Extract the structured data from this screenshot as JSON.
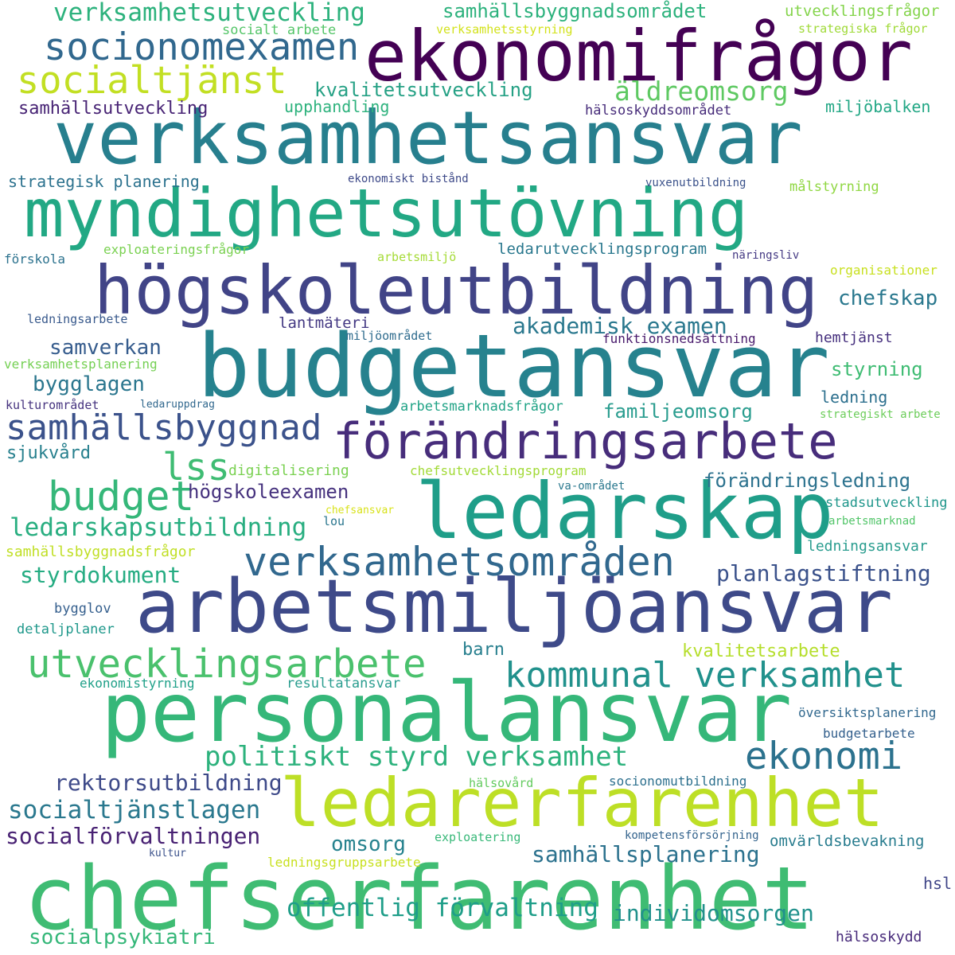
{
  "words": [
    {
      "text": "chefserfarenhet",
      "color": "#3fbc73"
    },
    {
      "text": "personalansvar",
      "color": "#35b779"
    },
    {
      "text": "arbetsmiljöansvar",
      "color": "#3e4a89"
    },
    {
      "text": "budgetansvar",
      "color": "#26828e"
    },
    {
      "text": "ledarerfarenhet",
      "color": "#bddf26"
    },
    {
      "text": "ledarskap",
      "color": "#1f9e89"
    },
    {
      "text": "verksamhetsansvar",
      "color": "#277f8e"
    },
    {
      "text": "myndighetsutövning",
      "color": "#22a884"
    },
    {
      "text": "högskoleutbildning",
      "color": "#414487"
    },
    {
      "text": "förändringsarbete",
      "color": "#472d7b"
    },
    {
      "text": "ekonomifrågor",
      "color": "#440154"
    },
    {
      "text": "verksamhetsområden",
      "color": "#31688e"
    },
    {
      "text": "socionomexamen",
      "color": "#31688e"
    },
    {
      "text": "utvecklingsarbete",
      "color": "#4ac16d"
    },
    {
      "text": "kommunal verksamhet",
      "color": "#21918c"
    },
    {
      "text": "samhällsbyggnad",
      "color": "#3b528b"
    },
    {
      "text": "budget",
      "color": "#35b779"
    },
    {
      "text": "socialtjänst",
      "color": "#c2df23"
    },
    {
      "text": "ekonomi",
      "color": "#2c728e"
    },
    {
      "text": "lss",
      "color": "#3fbc73"
    },
    {
      "text": "politiskt styrd verksamhet",
      "color": "#2db27d"
    },
    {
      "text": "verksamhetsutveckling",
      "color": "#2db27d"
    },
    {
      "text": "ledarskapsutbildning",
      "color": "#28ae80"
    },
    {
      "text": "socialtjänstlagen",
      "color": "#2a788e"
    },
    {
      "text": "socialförvaltningen",
      "color": "#482173"
    },
    {
      "text": "samhällsplanering",
      "color": "#2c728e"
    },
    {
      "text": "äldreomsorg",
      "color": "#5ec962"
    },
    {
      "text": "offentlig förvaltning",
      "color": "#1f9e89"
    },
    {
      "text": "individomsorgen",
      "color": "#21918c"
    },
    {
      "text": "samhällsbyggnadsområdet",
      "color": "#2db27d"
    },
    {
      "text": "akademisk examen",
      "color": "#2a788e"
    },
    {
      "text": "styrdokument",
      "color": "#25ac82"
    },
    {
      "text": "planlagstiftning",
      "color": "#3b528b"
    },
    {
      "text": "förändringsledning",
      "color": "#2c728e"
    },
    {
      "text": "rektorsutbildning",
      "color": "#3e4a89"
    },
    {
      "text": "socialpsykiatri",
      "color": "#35b779"
    },
    {
      "text": "familjeomsorg",
      "color": "#2a9d8f"
    },
    {
      "text": "samverkan",
      "color": "#365c8d"
    },
    {
      "text": "bygglagen",
      "color": "#2a768e"
    },
    {
      "text": "chefskap",
      "color": "#2a788e"
    },
    {
      "text": "kvalitetsarbete",
      "color": "#b5de2b"
    },
    {
      "text": "högskoleexamen",
      "color": "#46327e"
    },
    {
      "text": "omsorg",
      "color": "#26828e"
    },
    {
      "text": "styrning",
      "color": "#3fbc73"
    },
    {
      "text": "kvalitetsutveckling",
      "color": "#26a185"
    },
    {
      "text": "samhällsutveckling",
      "color": "#482475"
    },
    {
      "text": "upphandling",
      "color": "#2db27d"
    },
    {
      "text": "strategisk planering",
      "color": "#2c728e"
    },
    {
      "text": "exploateringsfrågor",
      "color": "#7ad151"
    },
    {
      "text": "ledarutvecklingsprogram",
      "color": "#2a788e"
    },
    {
      "text": "sjukvård",
      "color": "#27808e"
    },
    {
      "text": "lantmäteri",
      "color": "#443983"
    },
    {
      "text": "utvecklingsfrågor",
      "color": "#84d44b"
    },
    {
      "text": "socialt arbete",
      "color": "#54c568"
    },
    {
      "text": "verksamhetsstyrning",
      "color": "#d2e21b"
    },
    {
      "text": "strategiska frågor",
      "color": "#a0da39"
    },
    {
      "text": "hälsoskyddsområdet",
      "color": "#472c7a"
    },
    {
      "text": "miljöbalken",
      "color": "#22a785"
    },
    {
      "text": "målstyrning",
      "color": "#90d743"
    },
    {
      "text": "vuxenutbildning",
      "color": "#3b528b"
    },
    {
      "text": "ekonomiskt bistånd",
      "color": "#3e4a89"
    },
    {
      "text": "förskola",
      "color": "#2c728e"
    },
    {
      "text": "arbetsmiljö",
      "color": "#a5db36"
    },
    {
      "text": "näringsliv",
      "color": "#443983"
    },
    {
      "text": "organisationer",
      "color": "#c8e020"
    },
    {
      "text": "ledningsarbete",
      "color": "#38598c"
    },
    {
      "text": "miljöområdet",
      "color": "#2f6c8e"
    },
    {
      "text": "hemtjänst",
      "color": "#46307e"
    },
    {
      "text": "funktionsnedsättning",
      "color": "#481a6c"
    },
    {
      "text": "verksamhetsplanering",
      "color": "#75d054"
    },
    {
      "text": "ledning",
      "color": "#2d708e"
    },
    {
      "text": "kulturområdet",
      "color": "#46337f"
    },
    {
      "text": "ledaruppdrag",
      "color": "#31688e"
    },
    {
      "text": "arbetsmarknadsfrågor",
      "color": "#20a386"
    },
    {
      "text": "strategiskt arbete",
      "color": "#6ccd5a"
    },
    {
      "text": "digitalisering",
      "color": "#7ad151"
    },
    {
      "text": "chefsutvecklingsprogram",
      "color": "#a2da37"
    },
    {
      "text": "va-området",
      "color": "#2a788e"
    },
    {
      "text": "chefsansvar",
      "color": "#d8e219"
    },
    {
      "text": "lou",
      "color": "#2a768e"
    },
    {
      "text": "stadsutveckling",
      "color": "#1f968b"
    },
    {
      "text": "arbetsmarknad",
      "color": "#52c569"
    },
    {
      "text": "samhällsbyggnadsfrågor",
      "color": "#c0df25"
    },
    {
      "text": "ledningsansvar",
      "color": "#2a9d8f"
    },
    {
      "text": "bygglov",
      "color": "#355f8d"
    },
    {
      "text": "detaljplaner",
      "color": "#1f988b"
    },
    {
      "text": "barn",
      "color": "#277f8e"
    },
    {
      "text": "ekonomistyrning",
      "color": "#1fa088"
    },
    {
      "text": "resultatansvar",
      "color": "#2a9d8f"
    },
    {
      "text": "översiktsplanering",
      "color": "#31688e"
    },
    {
      "text": "budgetarbete",
      "color": "#34608d"
    },
    {
      "text": "hälsovård",
      "color": "#63cb5f"
    },
    {
      "text": "socionomutbildning",
      "color": "#2d708e"
    },
    {
      "text": "exploatering",
      "color": "#37b878"
    },
    {
      "text": "kompetensförsörjning",
      "color": "#33638d"
    },
    {
      "text": "omvärldsbevakning",
      "color": "#287c8e"
    },
    {
      "text": "kultur",
      "color": "#3b528b"
    },
    {
      "text": "ledningsgruppsarbete",
      "color": "#c8e020"
    },
    {
      "text": "hsl",
      "color": "#404688"
    },
    {
      "text": "hälsoskydd",
      "color": "#472a7a"
    }
  ]
}
